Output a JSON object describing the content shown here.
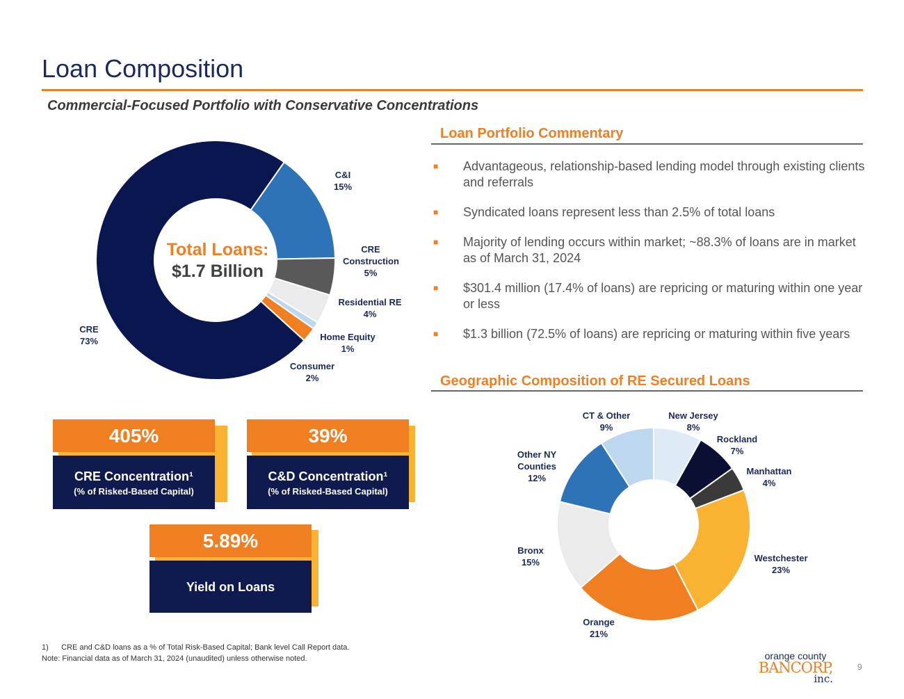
{
  "header": {
    "title": "Loan Composition",
    "subtitle": "Commercial-Focused Portfolio with Conservative Concentrations"
  },
  "commentary": {
    "heading": "Loan Portfolio Commentary",
    "bullets": [
      "Advantageous, relationship-based lending model through existing clients and referrals",
      "Syndicated loans represent less than 2.5% of total loans",
      "Majority of lending occurs within market; ~88.3% of loans are in market as of March 31, 2024",
      "$301.4 million (17.4% of loans) are repricing or maturing within one year or less",
      "$1.3 billion (72.5% of loans) are repricing or maturing within five years"
    ]
  },
  "geo_heading": "Geographic Composition of RE Secured Loans",
  "loan_center": {
    "line1": "Total Loans:",
    "line2": "$1.7 Billion"
  },
  "cards": [
    {
      "value": "405%",
      "label": "CRE Concentration¹",
      "sub": "(% of Risked-Based Capital)"
    },
    {
      "value": "39%",
      "label": "C&D Concentration¹",
      "sub": "(% of Risked-Based Capital)"
    },
    {
      "value": "5.89%",
      "label": "Yield on Loans"
    }
  ],
  "footnotes": {
    "note1": "1)      CRE and C&D loans as a % of Total Risk-Based Capital; Bank level Call Report data.",
    "note2": "Note: Financial data as of March 31, 2024 (unaudited) unless otherwise noted."
  },
  "logo": {
    "line1": "orange county",
    "line2": "BANCORP,",
    "line3": "inc."
  },
  "page_number": "9",
  "chart_data": [
    {
      "type": "pie",
      "title": "Total Loans: $1.7 Billion",
      "categories": [
        "C&I",
        "CRE Construction",
        "Residential RE",
        "Home Equity",
        "Consumer",
        "CRE"
      ],
      "values": [
        15,
        5,
        4,
        1,
        2,
        73
      ],
      "labels": [
        "15%",
        "5%",
        "4%",
        "1%",
        "2%",
        "73%"
      ],
      "colors": [
        "#2e72b8",
        "#595959",
        "#ebebeb",
        "#bdd7ee",
        "#f07f22",
        "#0a1650"
      ]
    },
    {
      "type": "pie",
      "title": "Geographic Composition of RE Secured Loans",
      "categories": [
        "New Jersey",
        "Rockland",
        "Manhattan",
        "Westchester",
        "Orange",
        "Bronx",
        "Other NY Counties",
        "CT & Other"
      ],
      "values": [
        8,
        7,
        4,
        23,
        21,
        15,
        12,
        9
      ],
      "labels": [
        "8%",
        "7%",
        "4%",
        "23%",
        "21%",
        "15%",
        "12%",
        "9%"
      ],
      "colors": [
        "#deebf7",
        "#0a1033",
        "#3a3a3a",
        "#f9b232",
        "#f07f22",
        "#ebebeb",
        "#2e72b8",
        "#bdd7ee"
      ]
    }
  ]
}
